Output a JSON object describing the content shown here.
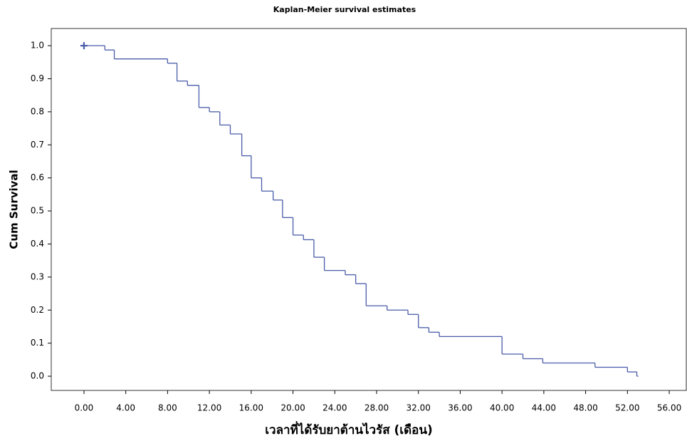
{
  "chart_data": {
    "type": "step",
    "title": "Kaplan-Meier survival estimates",
    "x_label": "เวลาที่ได้รับยาต้านไวรัส (เดือน)",
    "y_label": "Cum Survival",
    "color": "#4a5ca8",
    "x": [
      0,
      2,
      2.9,
      8,
      8.9,
      9.9,
      11,
      12,
      13,
      14,
      15.1,
      16,
      17,
      18.1,
      19,
      20,
      21,
      22,
      23,
      25,
      26,
      27,
      29,
      31,
      32,
      33,
      34,
      40,
      42,
      43.9,
      48.9,
      52,
      52.9
    ],
    "values": [
      1.0,
      0.987,
      0.96,
      0.947,
      0.893,
      0.88,
      0.813,
      0.8,
      0.76,
      0.733,
      0.667,
      0.6,
      0.56,
      0.533,
      0.48,
      0.427,
      0.413,
      0.36,
      0.32,
      0.307,
      0.28,
      0.213,
      0.2,
      0.187,
      0.147,
      0.133,
      0.12,
      0.067,
      0.053,
      0.04,
      0.027,
      0.013,
      0.0
    ],
    "xlim": [
      -3.13,
      57.7
    ],
    "ylim": [
      -0.043,
      1.052
    ],
    "xticks": [
      {
        "value": 0,
        "label": "0.00"
      },
      {
        "value": 4,
        "label": "4.00"
      },
      {
        "value": 8,
        "label": "8.00"
      },
      {
        "value": 12,
        "label": "12.00"
      },
      {
        "value": 16,
        "label": "16.00"
      },
      {
        "value": 20,
        "label": "20.00"
      },
      {
        "value": 24,
        "label": "24.00"
      },
      {
        "value": 28,
        "label": "28.00"
      },
      {
        "value": 32,
        "label": "32.00"
      },
      {
        "value": 36,
        "label": "36.00"
      },
      {
        "value": 40,
        "label": "40.00"
      },
      {
        "value": 44,
        "label": "44.00"
      },
      {
        "value": 48,
        "label": "48.00"
      },
      {
        "value": 52,
        "label": "52.00"
      },
      {
        "value": 56,
        "label": "56.00"
      }
    ],
    "yticks": [
      {
        "value": 0,
        "label": "0.0"
      },
      {
        "value": 0.1,
        "label": "0.1"
      },
      {
        "value": 0.2,
        "label": "0.2"
      },
      {
        "value": 0.3,
        "label": "0.3"
      },
      {
        "value": 0.4,
        "label": "0.4"
      },
      {
        "value": 0.5,
        "label": "0.5"
      },
      {
        "value": 0.6,
        "label": "0.6"
      },
      {
        "value": 0.7,
        "label": "0.7"
      },
      {
        "value": 0.8,
        "label": "0.8"
      },
      {
        "value": 0.9,
        "label": "0.9"
      },
      {
        "value": 1.0,
        "label": "1.0"
      }
    ],
    "grid": false
  }
}
